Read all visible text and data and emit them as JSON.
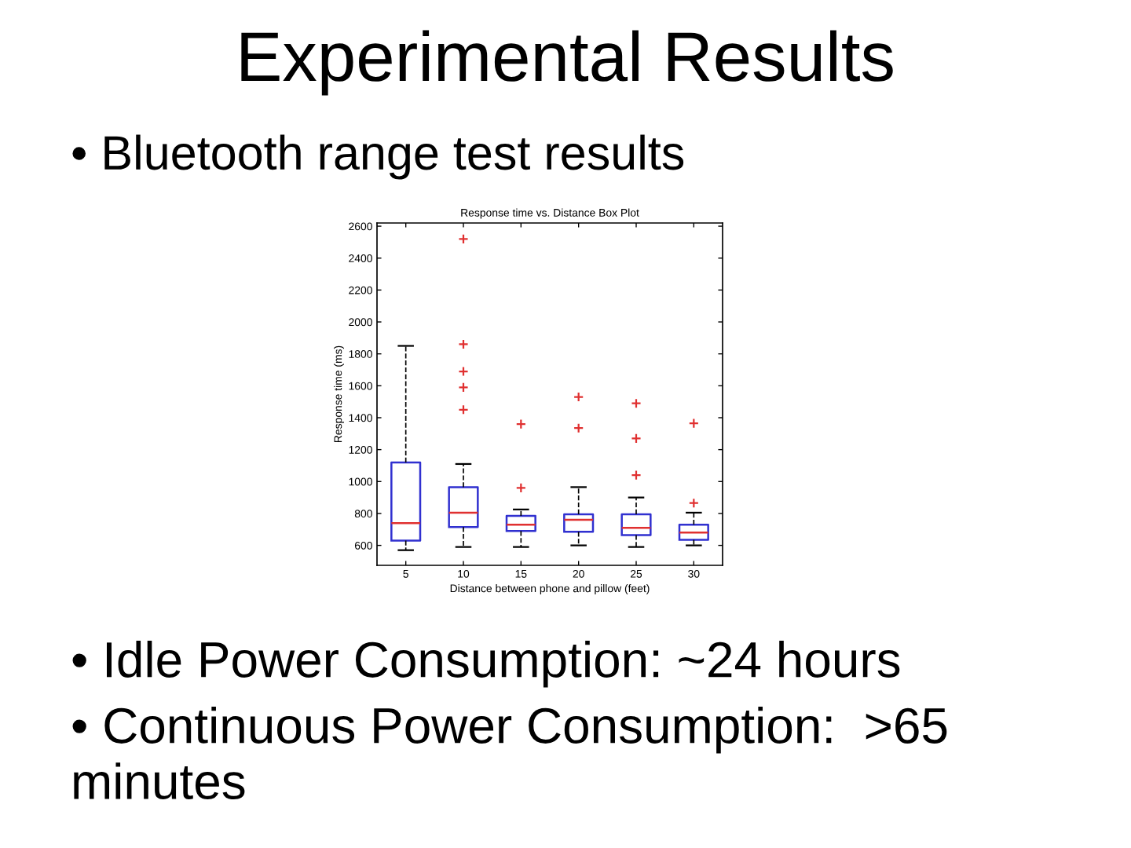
{
  "chart_data": {
    "type": "box",
    "title": "Experimental Results",
    "subtitle": "• Bluetooth range test results",
    "xlabel": "Distance between phone and pillow (feet)",
    "ylabel": "Response time (ms)",
    "annotations": [
      "Response time vs. Distance Box Plot",
      "• Idle Power Consumption: ~24 hours",
      "• Continuous Power Consumption:  >65 minutes"
    ],
    "categories": [
      "5",
      "10",
      "15",
      "20",
      "25",
      "30"
    ],
    "color": "#3030d0",
    "boxes": [
      {
        "low": 570,
        "q1": 630,
        "median": 740,
        "q3": 1120,
        "high": 1850
      },
      {
        "low": 590,
        "q1": 715,
        "median": 805,
        "q3": 965,
        "high": 1110,
        "outliers": [
          1450,
          1590,
          1690,
          1860,
          2520
        ]
      },
      {
        "low": 590,
        "q1": 690,
        "median": 730,
        "q3": 785,
        "high": 825,
        "outliers": [
          960,
          1360
        ]
      },
      {
        "low": 600,
        "q1": 685,
        "median": 760,
        "q3": 795,
        "high": 965,
        "outliers": [
          1335,
          1530
        ]
      },
      {
        "low": 590,
        "q1": 665,
        "median": 710,
        "q3": 795,
        "high": 900,
        "outliers": [
          1040,
          1270,
          1490
        ]
      },
      {
        "low": 600,
        "q1": 635,
        "median": 680,
        "q3": 730,
        "high": 805,
        "outliers": [
          865,
          1365
        ]
      }
    ],
    "ylim": [
      475,
      2620
    ],
    "yticks": [
      600,
      800,
      1000,
      1200,
      1400,
      1600,
      1800,
      2000,
      2200,
      2400,
      2600
    ],
    "marker": "cross",
    "line_style": "dashed"
  }
}
